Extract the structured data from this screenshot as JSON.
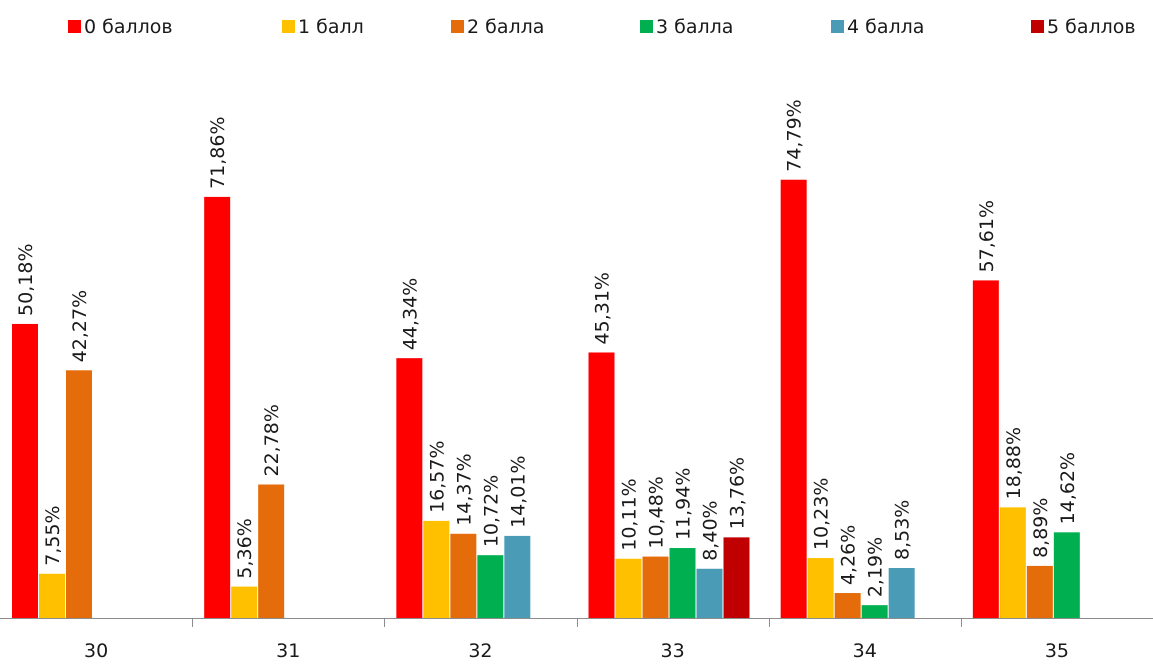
{
  "chart_data": {
    "type": "bar",
    "title": "",
    "xlabel": "",
    "ylabel": "",
    "ylim": [
      0,
      80
    ],
    "grid": false,
    "legend_position": "top",
    "categories": [
      "30",
      "31",
      "32",
      "33",
      "34",
      "35"
    ],
    "series": [
      {
        "name": "0 баллов",
        "color": "#ff0000",
        "values": [
          50.18,
          71.86,
          44.34,
          45.31,
          74.79,
          57.61
        ],
        "labels": [
          "50,18%",
          "71,86%",
          "44,34%",
          "45,31%",
          "74,79%",
          "57,61%"
        ]
      },
      {
        "name": "1 балл",
        "color": "#ffc000",
        "values": [
          7.55,
          5.36,
          16.57,
          10.11,
          10.23,
          18.88
        ],
        "labels": [
          "7,55%",
          "5,36%",
          "16,57%",
          "10,11%",
          "10,23%",
          "18,88%"
        ]
      },
      {
        "name": "2 балла",
        "color": "#e46c0a",
        "values": [
          42.27,
          22.78,
          14.37,
          10.48,
          4.26,
          8.89
        ],
        "labels": [
          "42,27%",
          "22,78%",
          "14,37%",
          "10,48%",
          "4,26%",
          "8,89%"
        ]
      },
      {
        "name": "3 балла",
        "color": "#00b050",
        "values": [
          null,
          null,
          10.72,
          11.94,
          2.19,
          14.62
        ],
        "labels": [
          null,
          null,
          "10,72%",
          "11,94%",
          "2,19%",
          "14,62%"
        ]
      },
      {
        "name": "4 балла",
        "color": "#4a9bb5",
        "values": [
          null,
          null,
          14.01,
          8.4,
          8.53,
          null
        ],
        "labels": [
          null,
          null,
          "14,01%",
          "8,40%",
          "8,53%",
          null
        ]
      },
      {
        "name": "5 баллов",
        "color": "#c00000",
        "values": [
          null,
          null,
          null,
          13.76,
          null,
          null
        ],
        "labels": [
          null,
          null,
          null,
          "13,76%",
          null,
          null
        ]
      }
    ]
  }
}
